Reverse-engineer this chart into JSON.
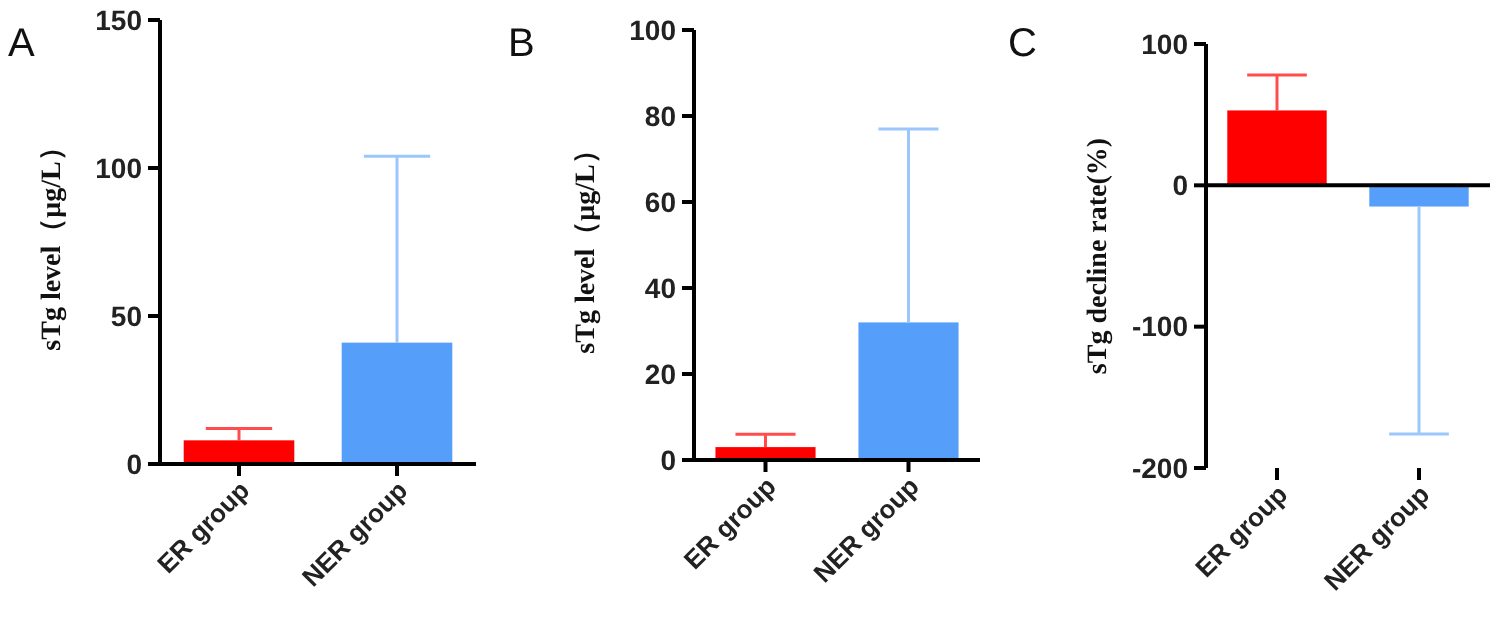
{
  "chart_data": [
    {
      "type": "bar",
      "title": "A",
      "ylabel": "sTg level（μg/L）",
      "categories": [
        "ER group",
        "NER group"
      ],
      "values": [
        8,
        41
      ],
      "colors": [
        "#ff0000",
        "#559ffa"
      ],
      "errors": [
        [
          8,
          12
        ],
        [
          41,
          104
        ]
      ],
      "ylim": [
        0,
        150
      ],
      "yticks": [
        0,
        50,
        100,
        150
      ]
    },
    {
      "type": "bar",
      "title": "B",
      "ylabel": "sTg level（μg/L）",
      "categories": [
        "ER group",
        "NER group"
      ],
      "values": [
        3,
        32
      ],
      "colors": [
        "#ff0000",
        "#559ffa"
      ],
      "errors": [
        [
          3,
          6
        ],
        [
          32,
          77
        ]
      ],
      "ylim": [
        0,
        100
      ],
      "yticks": [
        0,
        20,
        40,
        60,
        80,
        100
      ]
    },
    {
      "type": "bar",
      "title": "C",
      "ylabel": "sTg decline rate(%)",
      "categories": [
        "ER group",
        "NER group"
      ],
      "values": [
        53,
        -15
      ],
      "colors": [
        "#ff0000",
        "#559ffa"
      ],
      "errors": [
        [
          53,
          78
        ],
        [
          -176,
          -15
        ]
      ],
      "ylim": [
        -200,
        100
      ],
      "yticks": [
        -200,
        -100,
        0,
        100
      ]
    }
  ]
}
